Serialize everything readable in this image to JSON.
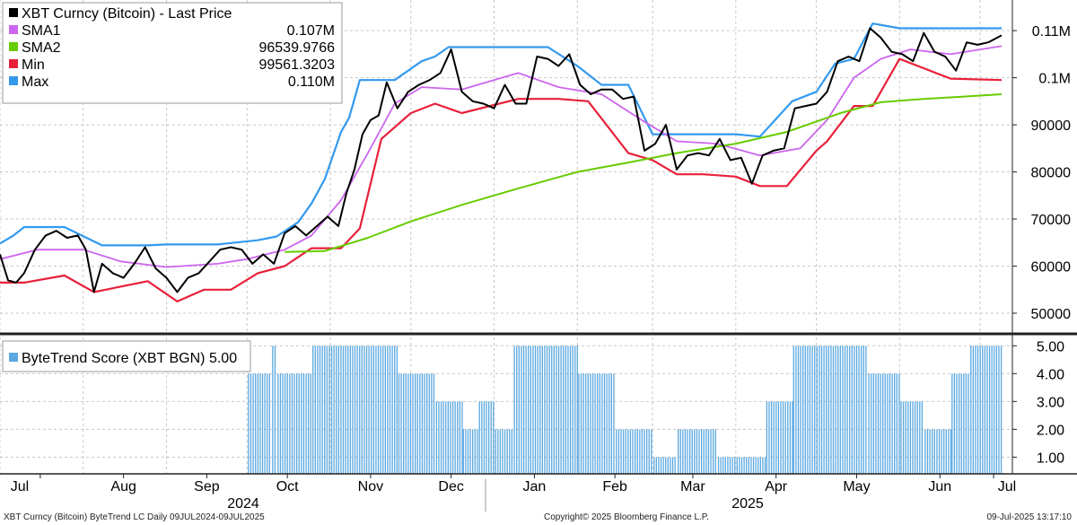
{
  "chart_data": [
    {
      "type": "line",
      "title": "XBT Curncy (Bitcoin) - Last Price",
      "ylim": [
        46000,
        116500
      ],
      "y_ticks": [
        50000,
        60000,
        70000,
        80000,
        90000,
        100000,
        110000
      ],
      "y_tick_labels": [
        "50000",
        "60000",
        "70000",
        "80000",
        "90000",
        "0.1M",
        "0.11M"
      ],
      "grid": true,
      "legend_position": "top-left",
      "legend": [
        {
          "name": "XBT Curncy (Bitcoin) - Last Price",
          "value": "",
          "color": "#000000"
        },
        {
          "name": "SMA1",
          "value": "0.107M",
          "color": "#cc66ee"
        },
        {
          "name": "SMA2",
          "value": "96539.9766",
          "color": "#66cc00"
        },
        {
          "name": "Min",
          "value": "99561.3203",
          "color": "#e8203a"
        },
        {
          "name": "Max",
          "value": "0.110M",
          "color": "#3399ee"
        }
      ],
      "x_month_labels": [
        "Jul",
        "Aug",
        "Sep",
        "Oct",
        "Nov",
        "Dec",
        "Jan",
        "Feb",
        "Mar",
        "Apr",
        "May",
        "Jun",
        "Jul"
      ],
      "x_year_labels": [
        "2024",
        "2025"
      ],
      "series": [
        {
          "name": "Max",
          "color": "#3399ee",
          "x": [
            "2024-07-01",
            "2024-07-06",
            "2024-07-10",
            "2024-07-25",
            "2024-08-08",
            "2024-08-25",
            "2024-09-01",
            "2024-09-20",
            "2024-09-25",
            "2024-10-05",
            "2024-10-12",
            "2024-10-20",
            "2024-10-25",
            "2024-10-30",
            "2024-11-05",
            "2024-11-08",
            "2024-11-12",
            "2024-11-20",
            "2024-11-25",
            "2024-12-05",
            "2024-12-10",
            "2024-12-15",
            "2024-12-20",
            "2025-01-01",
            "2025-01-21",
            "2025-02-01",
            "2025-02-10",
            "2025-02-20",
            "2025-03-01",
            "2025-03-10",
            "2025-03-20",
            "2025-04-01",
            "2025-04-10",
            "2025-04-22",
            "2025-05-01",
            "2025-05-08",
            "2025-05-15",
            "2025-05-22",
            "2025-06-01",
            "2025-06-20",
            "2025-07-09"
          ],
          "values": [
            64800,
            66500,
            68300,
            68300,
            64400,
            64400,
            64600,
            64600,
            64900,
            65500,
            66300,
            69300,
            73300,
            78500,
            88500,
            91500,
            99500,
            99500,
            99500,
            103500,
            104500,
            106500,
            106500,
            106500,
            106500,
            102500,
            98500,
            98500,
            88000,
            88000,
            88000,
            88000,
            87500,
            95000,
            97000,
            103000,
            104000,
            111500,
            110500,
            110500,
            110500
          ]
        },
        {
          "name": "Min",
          "color": "#e8203a",
          "x": [
            "2024-07-01",
            "2024-07-10",
            "2024-07-25",
            "2024-08-05",
            "2024-08-25",
            "2024-09-05",
            "2024-09-15",
            "2024-09-25",
            "2024-10-05",
            "2024-10-15",
            "2024-10-25",
            "2024-11-05",
            "2024-11-12",
            "2024-11-20",
            "2024-12-01",
            "2024-12-10",
            "2024-12-20",
            "2025-01-10",
            "2025-01-25",
            "2025-02-05",
            "2025-02-20",
            "2025-03-01",
            "2025-03-10",
            "2025-03-20",
            "2025-04-01",
            "2025-04-10",
            "2025-04-20",
            "2025-05-01",
            "2025-05-05",
            "2025-05-15",
            "2025-05-22",
            "2025-06-01",
            "2025-06-20",
            "2025-07-09"
          ],
          "values": [
            56500,
            56500,
            58000,
            54500,
            56800,
            52500,
            55000,
            55000,
            58500,
            60000,
            63800,
            63800,
            68000,
            87000,
            92500,
            94500,
            92500,
            95500,
            95500,
            95000,
            84000,
            82500,
            79500,
            79500,
            79000,
            77000,
            77000,
            84500,
            86500,
            94000,
            94000,
            104000,
            99800,
            99500
          ]
        },
        {
          "name": "SMA1",
          "color": "#cc66ee",
          "x": [
            "2024-07-01",
            "2024-07-15",
            "2024-08-01",
            "2024-08-15",
            "2024-09-01",
            "2024-09-20",
            "2024-10-01",
            "2024-10-15",
            "2024-10-25",
            "2024-11-05",
            "2024-11-15",
            "2024-11-25",
            "2024-12-05",
            "2024-12-20",
            "2025-01-10",
            "2025-01-25",
            "2025-02-10",
            "2025-02-25",
            "2025-03-10",
            "2025-03-25",
            "2025-04-10",
            "2025-04-25",
            "2025-05-05",
            "2025-05-15",
            "2025-05-25",
            "2025-06-05",
            "2025-06-20",
            "2025-07-01",
            "2025-07-09"
          ],
          "values": [
            61500,
            63500,
            63500,
            61000,
            59800,
            60500,
            61500,
            63500,
            66500,
            74000,
            84000,
            94500,
            98000,
            97500,
            101000,
            98000,
            96500,
            91000,
            86500,
            86000,
            83500,
            85000,
            91000,
            100000,
            104000,
            106000,
            105000,
            106000,
            106700
          ]
        },
        {
          "name": "SMA2",
          "color": "#66cc00",
          "x": [
            "2024-10-15",
            "2024-10-30",
            "2024-11-15",
            "2024-12-01",
            "2024-12-20",
            "2025-01-10",
            "2025-02-01",
            "2025-02-20",
            "2025-03-10",
            "2025-04-01",
            "2025-04-20",
            "2025-05-10",
            "2025-05-25",
            "2025-06-10",
            "2025-06-25",
            "2025-07-09"
          ],
          "values": [
            63000,
            63200,
            66000,
            69500,
            73000,
            76500,
            80000,
            82000,
            84000,
            86000,
            88500,
            92500,
            94800,
            95500,
            96000,
            96500
          ]
        },
        {
          "name": "XBT Curncy (Bitcoin) - Last Price",
          "color": "#000000",
          "x": [
            "2024-07-01",
            "2024-07-04",
            "2024-07-07",
            "2024-07-10",
            "2024-07-14",
            "2024-07-18",
            "2024-07-22",
            "2024-07-26",
            "2024-07-30",
            "2024-08-02",
            "2024-08-05",
            "2024-08-08",
            "2024-08-12",
            "2024-08-16",
            "2024-08-20",
            "2024-08-24",
            "2024-08-28",
            "2024-09-01",
            "2024-09-05",
            "2024-09-09",
            "2024-09-13",
            "2024-09-17",
            "2024-09-21",
            "2024-09-25",
            "2024-09-29",
            "2024-10-03",
            "2024-10-07",
            "2024-10-11",
            "2024-10-15",
            "2024-10-19",
            "2024-10-23",
            "2024-10-27",
            "2024-10-31",
            "2024-11-04",
            "2024-11-07",
            "2024-11-10",
            "2024-11-13",
            "2024-11-16",
            "2024-11-19",
            "2024-11-22",
            "2024-11-26",
            "2024-11-30",
            "2024-12-04",
            "2024-12-08",
            "2024-12-12",
            "2024-12-16",
            "2024-12-20",
            "2024-12-24",
            "2024-12-28",
            "2025-01-01",
            "2025-01-05",
            "2025-01-09",
            "2025-01-13",
            "2025-01-17",
            "2025-01-21",
            "2025-01-25",
            "2025-01-29",
            "2025-02-02",
            "2025-02-06",
            "2025-02-10",
            "2025-02-14",
            "2025-02-18",
            "2025-02-22",
            "2025-02-26",
            "2025-03-02",
            "2025-03-06",
            "2025-03-10",
            "2025-03-14",
            "2025-03-18",
            "2025-03-22",
            "2025-03-26",
            "2025-03-30",
            "2025-04-03",
            "2025-04-07",
            "2025-04-11",
            "2025-04-15",
            "2025-04-19",
            "2025-04-23",
            "2025-04-27",
            "2025-05-01",
            "2025-05-05",
            "2025-05-09",
            "2025-05-13",
            "2025-05-17",
            "2025-05-21",
            "2025-05-25",
            "2025-05-29",
            "2025-06-02",
            "2025-06-06",
            "2025-06-10",
            "2025-06-14",
            "2025-06-18",
            "2025-06-22",
            "2025-06-26",
            "2025-06-30",
            "2025-07-04",
            "2025-07-09"
          ],
          "values": [
            62500,
            57000,
            56500,
            58500,
            63500,
            66500,
            67500,
            66000,
            66500,
            63500,
            54500,
            60500,
            58500,
            57500,
            60500,
            64000,
            59500,
            57500,
            54500,
            57500,
            58500,
            61000,
            63500,
            64000,
            63500,
            60500,
            62500,
            60500,
            67000,
            68500,
            66500,
            68500,
            70500,
            68500,
            75500,
            80500,
            88000,
            91000,
            92000,
            99000,
            93500,
            97000,
            98500,
            99500,
            101000,
            106000,
            97000,
            95000,
            94500,
            93500,
            98500,
            94500,
            94500,
            104500,
            104000,
            102500,
            105000,
            98500,
            96500,
            97500,
            97500,
            95500,
            96000,
            84500,
            86000,
            90000,
            80500,
            83500,
            84000,
            83500,
            87000,
            82500,
            83000,
            77500,
            83500,
            84500,
            85000,
            93500,
            94000,
            94500,
            97000,
            103500,
            104500,
            103500,
            110500,
            108500,
            105500,
            105000,
            103500,
            109500,
            105500,
            104500,
            101500,
            107500,
            107000,
            107500,
            109000
          ]
        },
        {
          "name": "ByteTrend Score (XBT BGN)",
          "type": "bar",
          "color": "#5aa8e0",
          "ylim": [
            0.4,
            5.3
          ],
          "current_value": "5.00",
          "y_ticks": [
            1,
            2,
            3,
            4,
            5
          ],
          "y_tick_labels": [
            "1.00",
            "2.00",
            "3.00",
            "4.00",
            "5.00"
          ],
          "segments": [
            {
              "from": "2024-10-01",
              "to": "2024-10-10",
              "value": 4
            },
            {
              "from": "2024-10-10",
              "to": "2024-10-12",
              "value": 5
            },
            {
              "from": "2024-10-12",
              "to": "2024-10-25",
              "value": 4
            },
            {
              "from": "2024-10-25",
              "to": "2024-11-26",
              "value": 5
            },
            {
              "from": "2024-11-26",
              "to": "2024-12-10",
              "value": 4
            },
            {
              "from": "2024-12-10",
              "to": "2024-12-20",
              "value": 3
            },
            {
              "from": "2024-12-20",
              "to": "2024-12-26",
              "value": 2
            },
            {
              "from": "2024-12-26",
              "to": "2025-01-01",
              "value": 3
            },
            {
              "from": "2025-01-01",
              "to": "2025-01-08",
              "value": 2
            },
            {
              "from": "2025-01-08",
              "to": "2025-02-01",
              "value": 5
            },
            {
              "from": "2025-02-01",
              "to": "2025-02-15",
              "value": 4
            },
            {
              "from": "2025-02-15",
              "to": "2025-03-01",
              "value": 2
            },
            {
              "from": "2025-03-01",
              "to": "2025-03-10",
              "value": 1
            },
            {
              "from": "2025-03-10",
              "to": "2025-03-25",
              "value": 2
            },
            {
              "from": "2025-03-25",
              "to": "2025-04-12",
              "value": 1
            },
            {
              "from": "2025-04-12",
              "to": "2025-04-22",
              "value": 3
            },
            {
              "from": "2025-04-22",
              "to": "2025-05-20",
              "value": 5
            },
            {
              "from": "2025-05-20",
              "to": "2025-06-01",
              "value": 4
            },
            {
              "from": "2025-06-01",
              "to": "2025-06-10",
              "value": 3
            },
            {
              "from": "2025-06-10",
              "to": "2025-06-20",
              "value": 2
            },
            {
              "from": "2025-06-20",
              "to": "2025-06-27",
              "value": 4
            },
            {
              "from": "2025-06-27",
              "to": "2025-07-09",
              "value": 5
            }
          ]
        }
      ]
    }
  ],
  "lower_panel": {
    "legend_label": "ByteTrend Score (XBT BGN) 5.00"
  },
  "footer": {
    "left": "XBT Curncy (Bitcoin) ByteTrend LC  Daily 09JUL2024-09JUL2025",
    "center": "Copyright© 2025 Bloomberg Finance L.P.",
    "right": "09-Jul-2025 13:17:10"
  }
}
